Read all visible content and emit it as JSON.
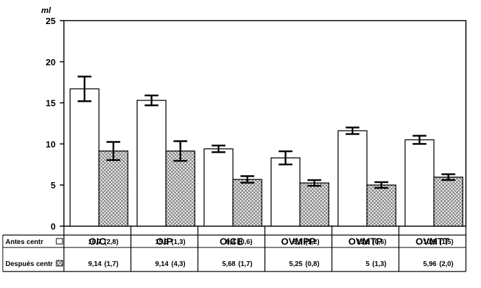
{
  "chart_data": {
    "type": "bar",
    "unit": "ml",
    "ylim": [
      0,
      25
    ],
    "yticks": [
      "0",
      "5",
      "10",
      "15",
      "20",
      "25"
    ],
    "grid": false,
    "categories": [
      "OIC",
      "OIP",
      "OICE",
      "OVMPP",
      "OVMTP",
      "OVMTT"
    ],
    "series": [
      {
        "name": "Antes centr",
        "pattern": "plain",
        "values": [
          16.7,
          15.3,
          9.4,
          8.3,
          11.6,
          10.5
        ],
        "errors": [
          1.5,
          0.6,
          0.4,
          0.8,
          0.4,
          0.5
        ],
        "value_labels": [
          "16,7",
          "15,3",
          "9,4",
          "8,3",
          "11,6",
          "10,5"
        ],
        "sd_labels": [
          "(2,8)",
          "(1,3)",
          "(0,6)",
          "(1,2)",
          "(0,6)",
          "(1,5)"
        ]
      },
      {
        "name": "Después centr",
        "pattern": "crosshatch",
        "values": [
          9.14,
          9.14,
          5.68,
          5.25,
          5.0,
          5.96
        ],
        "errors": [
          1.1,
          1.2,
          0.4,
          0.35,
          0.35,
          0.35
        ],
        "value_labels": [
          "9,14",
          "9,14",
          "5,68",
          "5,25",
          "5",
          "5,96"
        ],
        "sd_labels": [
          "(1,7)",
          "(4,3)",
          "(1,7)",
          "(0,8)",
          "(1,3)",
          "(2,0)"
        ]
      }
    ]
  }
}
